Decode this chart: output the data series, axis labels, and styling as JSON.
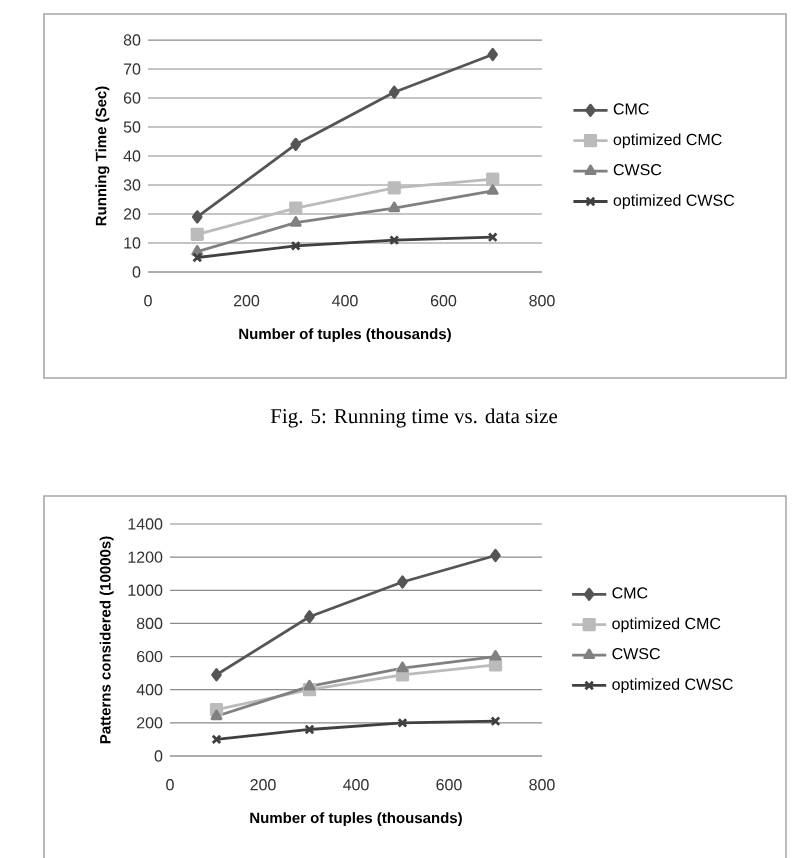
{
  "chart_data": [
    {
      "type": "line",
      "xlabel": "Number of tuples (thousands)",
      "ylabel": "Running Time (Sec)",
      "x": [
        100,
        300,
        500,
        700
      ],
      "xlim": [
        0,
        800
      ],
      "xticks": [
        0,
        200,
        400,
        600,
        800
      ],
      "ylim": [
        0,
        80
      ],
      "yticks": [
        0,
        10,
        20,
        30,
        40,
        50,
        60,
        70,
        80
      ],
      "grid": "y",
      "legend": "right",
      "annotations": [
        "Fig. 5: Running time vs. data size"
      ],
      "series": [
        {
          "name": "CMC",
          "color": "#555555",
          "marker": "diamond",
          "values": [
            19,
            44,
            62,
            75
          ]
        },
        {
          "name": "optimized CMC",
          "color": "#bbbbbb",
          "marker": "square",
          "values": [
            13,
            22,
            29,
            32
          ]
        },
        {
          "name": "CWSC",
          "color": "#808080",
          "marker": "triangle",
          "values": [
            7,
            17,
            22,
            28
          ]
        },
        {
          "name": "optimized CWSC",
          "color": "#404040",
          "marker": "cross",
          "values": [
            5,
            9,
            11,
            12
          ]
        }
      ]
    },
    {
      "type": "line",
      "xlabel": "Number of tuples (thousands)",
      "ylabel": "Patterns considered (10000s)",
      "x": [
        100,
        300,
        500,
        700
      ],
      "xlim": [
        0,
        800
      ],
      "xticks": [
        0,
        200,
        400,
        600,
        800
      ],
      "ylim": [
        0,
        1400
      ],
      "yticks": [
        0,
        200,
        400,
        600,
        800,
        1000,
        1200,
        1400
      ],
      "grid": "y",
      "legend": "right",
      "series": [
        {
          "name": "CMC",
          "color": "#555555",
          "marker": "diamond",
          "values": [
            490,
            840,
            1050,
            1210
          ]
        },
        {
          "name": "optimized CMC",
          "color": "#bbbbbb",
          "marker": "square",
          "values": [
            280,
            400,
            490,
            550
          ]
        },
        {
          "name": "CWSC",
          "color": "#808080",
          "marker": "triangle",
          "values": [
            240,
            420,
            530,
            600
          ]
        },
        {
          "name": "optimized CWSC",
          "color": "#404040",
          "marker": "cross",
          "values": [
            100,
            160,
            200,
            210
          ]
        }
      ]
    }
  ]
}
